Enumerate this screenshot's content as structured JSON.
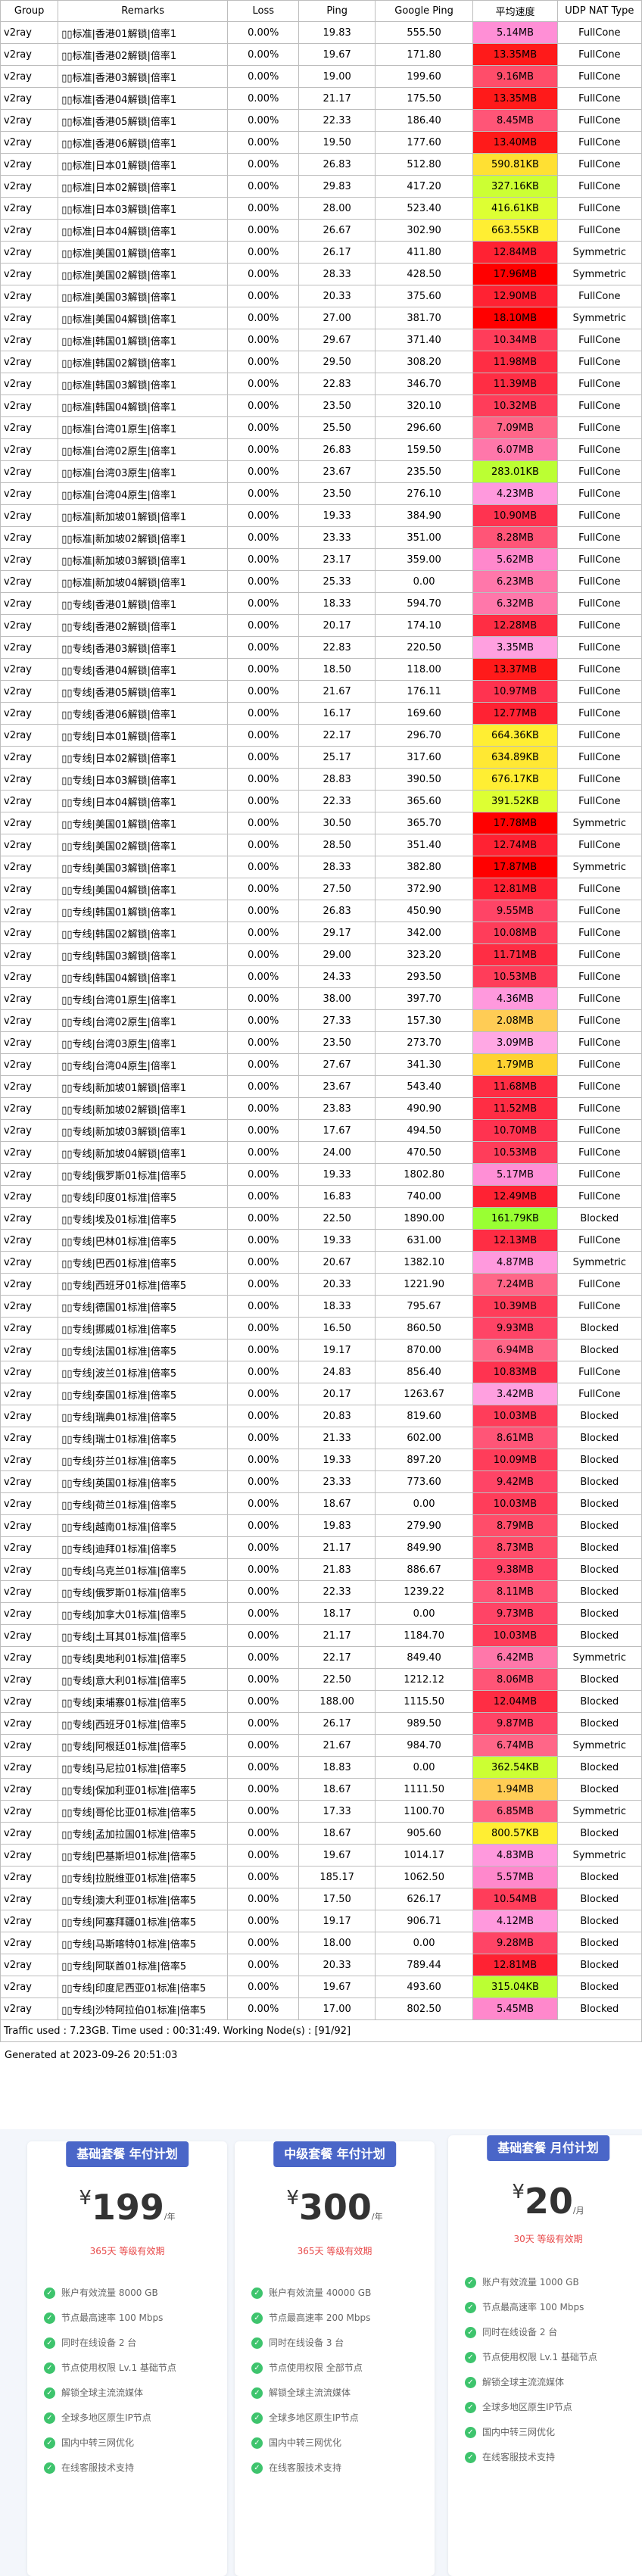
{
  "table": {
    "headers": [
      "Group",
      "Remarks",
      "Loss",
      "Ping",
      "Google Ping",
      "平均速度",
      "UDP NAT Type"
    ],
    "rows": [
      [
        "v2ray",
        "▯▯标准|香港01解锁|倍率1",
        "0.00%",
        "19.83",
        "555.50",
        "5.14MB",
        "FullCone",
        "#ff8fd6"
      ],
      [
        "v2ray",
        "▯▯标准|香港02解锁|倍率1",
        "0.00%",
        "19.67",
        "171.80",
        "13.35MB",
        "FullCone",
        "#ff1a1a"
      ],
      [
        "v2ray",
        "▯▯标准|香港03解锁|倍率1",
        "0.00%",
        "19.00",
        "199.60",
        "9.16MB",
        "FullCone",
        "#ff4d6a"
      ],
      [
        "v2ray",
        "▯▯标准|香港04解锁|倍率1",
        "0.00%",
        "21.17",
        "175.50",
        "13.35MB",
        "FullCone",
        "#ff1a1a"
      ],
      [
        "v2ray",
        "▯▯标准|香港05解锁|倍率1",
        "0.00%",
        "22.33",
        "186.40",
        "8.45MB",
        "FullCone",
        "#ff5577"
      ],
      [
        "v2ray",
        "▯▯标准|香港06解锁|倍率1",
        "0.00%",
        "19.50",
        "177.60",
        "13.40MB",
        "FullCone",
        "#ff1a1a"
      ],
      [
        "v2ray",
        "▯▯标准|日本01解锁|倍率1",
        "0.00%",
        "26.83",
        "512.80",
        "590.81KB",
        "FullCone",
        "#ffe033"
      ],
      [
        "v2ray",
        "▯▯标准|日本02解锁|倍率1",
        "0.00%",
        "29.83",
        "417.20",
        "327.16KB",
        "FullCone",
        "#ccff33"
      ],
      [
        "v2ray",
        "▯▯标准|日本03解锁|倍率1",
        "0.00%",
        "28.00",
        "523.40",
        "416.61KB",
        "FullCone",
        "#ddff33"
      ],
      [
        "v2ray",
        "▯▯标准|日本04解锁|倍率1",
        "0.00%",
        "26.67",
        "302.90",
        "663.55KB",
        "FullCone",
        "#ffee33"
      ],
      [
        "v2ray",
        "▯▯标准|美国01解锁|倍率1",
        "0.00%",
        "26.17",
        "411.80",
        "12.84MB",
        "Symmetric",
        "#ff2233"
      ],
      [
        "v2ray",
        "▯▯标准|美国02解锁|倍率1",
        "0.00%",
        "28.33",
        "428.50",
        "17.96MB",
        "Symmetric",
        "#ff0000"
      ],
      [
        "v2ray",
        "▯▯标准|美国03解锁|倍率1",
        "0.00%",
        "20.33",
        "375.60",
        "12.90MB",
        "FullCone",
        "#ff2233"
      ],
      [
        "v2ray",
        "▯▯标准|美国04解锁|倍率1",
        "0.00%",
        "27.00",
        "381.70",
        "18.10MB",
        "Symmetric",
        "#ff0000"
      ],
      [
        "v2ray",
        "▯▯标准|韩国01解锁|倍率1",
        "0.00%",
        "29.67",
        "371.40",
        "10.34MB",
        "FullCone",
        "#ff3d5a"
      ],
      [
        "v2ray",
        "▯▯标准|韩国02解锁|倍率1",
        "0.00%",
        "29.50",
        "308.20",
        "11.98MB",
        "FullCone",
        "#ff2d44"
      ],
      [
        "v2ray",
        "▯▯标准|韩国03解锁|倍率1",
        "0.00%",
        "22.83",
        "346.70",
        "11.39MB",
        "FullCone",
        "#ff2d44"
      ],
      [
        "v2ray",
        "▯▯标准|韩国04解锁|倍率1",
        "0.00%",
        "23.50",
        "320.10",
        "10.32MB",
        "FullCone",
        "#ff3d5a"
      ],
      [
        "v2ray",
        "▯▯标准|台湾01原生|倍率1",
        "0.00%",
        "25.50",
        "296.60",
        "7.09MB",
        "FullCone",
        "#ff6688"
      ],
      [
        "v2ray",
        "▯▯标准|台湾02原生|倍率1",
        "0.00%",
        "26.83",
        "159.50",
        "6.07MB",
        "FullCone",
        "#ff77aa"
      ],
      [
        "v2ray",
        "▯▯标准|台湾03原生|倍率1",
        "0.00%",
        "23.67",
        "235.50",
        "283.01KB",
        "FullCone",
        "#bbff33"
      ],
      [
        "v2ray",
        "▯▯标准|台湾04原生|倍率1",
        "0.00%",
        "23.50",
        "276.10",
        "4.23MB",
        "FullCone",
        "#ff99dd"
      ],
      [
        "v2ray",
        "▯▯标准|新加坡01解锁|倍率1",
        "0.00%",
        "19.33",
        "384.90",
        "10.90MB",
        "FullCone",
        "#ff3350"
      ],
      [
        "v2ray",
        "▯▯标准|新加坡02解锁|倍率1",
        "0.00%",
        "23.33",
        "351.00",
        "8.28MB",
        "FullCone",
        "#ff5577"
      ],
      [
        "v2ray",
        "▯▯标准|新加坡03解锁|倍率1",
        "0.00%",
        "23.17",
        "359.00",
        "5.62MB",
        "FullCone",
        "#ff88cc"
      ],
      [
        "v2ray",
        "▯▯标准|新加坡04解锁|倍率1",
        "0.00%",
        "25.33",
        "0.00",
        "6.23MB",
        "FullCone",
        "#ff77aa"
      ],
      [
        "v2ray",
        "▯▯专线|香港01解锁|倍率1",
        "0.00%",
        "18.33",
        "594.70",
        "6.32MB",
        "FullCone",
        "#ff77aa"
      ],
      [
        "v2ray",
        "▯▯专线|香港02解锁|倍率1",
        "0.00%",
        "20.17",
        "174.10",
        "12.28MB",
        "FullCone",
        "#ff2d44"
      ],
      [
        "v2ray",
        "▯▯专线|香港03解锁|倍率1",
        "0.00%",
        "22.83",
        "220.50",
        "3.35MB",
        "FullCone",
        "#ffa0e0"
      ],
      [
        "v2ray",
        "▯▯专线|香港04解锁|倍率1",
        "0.00%",
        "18.50",
        "118.00",
        "13.37MB",
        "FullCone",
        "#ff1a1a"
      ],
      [
        "v2ray",
        "▯▯专线|香港05解锁|倍率1",
        "0.00%",
        "21.67",
        "176.11",
        "10.97MB",
        "FullCone",
        "#ff3350"
      ],
      [
        "v2ray",
        "▯▯专线|香港06解锁|倍率1",
        "0.00%",
        "16.17",
        "169.60",
        "12.77MB",
        "FullCone",
        "#ff2233"
      ],
      [
        "v2ray",
        "▯▯专线|日本01解锁|倍率1",
        "0.00%",
        "22.17",
        "296.70",
        "664.36KB",
        "FullCone",
        "#ffee33"
      ],
      [
        "v2ray",
        "▯▯专线|日本02解锁|倍率1",
        "0.00%",
        "25.17",
        "317.60",
        "634.89KB",
        "FullCone",
        "#ffe833"
      ],
      [
        "v2ray",
        "▯▯专线|日本03解锁|倍率1",
        "0.00%",
        "28.83",
        "390.50",
        "676.17KB",
        "FullCone",
        "#ffee33"
      ],
      [
        "v2ray",
        "▯▯专线|日本04解锁|倍率1",
        "0.00%",
        "22.33",
        "365.60",
        "391.52KB",
        "FullCone",
        "#ddff33"
      ],
      [
        "v2ray",
        "▯▯专线|美国01解锁|倍率1",
        "0.00%",
        "30.50",
        "365.70",
        "17.78MB",
        "Symmetric",
        "#ff0000"
      ],
      [
        "v2ray",
        "▯▯专线|美国02解锁|倍率1",
        "0.00%",
        "28.50",
        "351.40",
        "12.74MB",
        "FullCone",
        "#ff2233"
      ],
      [
        "v2ray",
        "▯▯专线|美国03解锁|倍率1",
        "0.00%",
        "28.33",
        "382.80",
        "17.87MB",
        "Symmetric",
        "#ff0000"
      ],
      [
        "v2ray",
        "▯▯专线|美国04解锁|倍率1",
        "0.00%",
        "27.50",
        "372.90",
        "12.81MB",
        "FullCone",
        "#ff2233"
      ],
      [
        "v2ray",
        "▯▯专线|韩国01解锁|倍率1",
        "0.00%",
        "26.83",
        "450.90",
        "9.55MB",
        "FullCone",
        "#ff4466"
      ],
      [
        "v2ray",
        "▯▯专线|韩国02解锁|倍率1",
        "0.00%",
        "29.17",
        "342.00",
        "10.08MB",
        "FullCone",
        "#ff3d5a"
      ],
      [
        "v2ray",
        "▯▯专线|韩国03解锁|倍率1",
        "0.00%",
        "29.00",
        "323.20",
        "11.71MB",
        "FullCone",
        "#ff2d44"
      ],
      [
        "v2ray",
        "▯▯专线|韩国04解锁|倍率1",
        "0.00%",
        "24.33",
        "293.50",
        "10.53MB",
        "FullCone",
        "#ff3d5a"
      ],
      [
        "v2ray",
        "▯▯专线|台湾01原生|倍率1",
        "0.00%",
        "38.00",
        "397.70",
        "4.36MB",
        "FullCone",
        "#ff99dd"
      ],
      [
        "v2ray",
        "▯▯专线|台湾02原生|倍率1",
        "0.00%",
        "27.33",
        "157.30",
        "2.08MB",
        "FullCone",
        "#ffcc55"
      ],
      [
        "v2ray",
        "▯▯专线|台湾03原生|倍率1",
        "0.00%",
        "23.50",
        "273.70",
        "3.09MB",
        "FullCone",
        "#ffa8e4"
      ],
      [
        "v2ray",
        "▯▯专线|台湾04原生|倍率1",
        "0.00%",
        "27.67",
        "341.30",
        "1.79MB",
        "FullCone",
        "#ffd233"
      ],
      [
        "v2ray",
        "▯▯专线|新加坡01解锁|倍率1",
        "0.00%",
        "23.67",
        "543.40",
        "11.68MB",
        "FullCone",
        "#ff2d44"
      ],
      [
        "v2ray",
        "▯▯专线|新加坡02解锁|倍率1",
        "0.00%",
        "23.83",
        "490.90",
        "11.52MB",
        "FullCone",
        "#ff2d44"
      ],
      [
        "v2ray",
        "▯▯专线|新加坡03解锁|倍率1",
        "0.00%",
        "17.67",
        "494.50",
        "10.70MB",
        "FullCone",
        "#ff3350"
      ],
      [
        "v2ray",
        "▯▯专线|新加坡04解锁|倍率1",
        "0.00%",
        "24.00",
        "470.50",
        "10.53MB",
        "FullCone",
        "#ff3d5a"
      ],
      [
        "v2ray",
        "▯▯专线|俄罗斯01标准|倍率5",
        "0.00%",
        "19.33",
        "1802.80",
        "5.17MB",
        "FullCone",
        "#ff8fd6"
      ],
      [
        "v2ray",
        "▯▯专线|印度01标准|倍率5",
        "0.00%",
        "16.83",
        "740.00",
        "12.49MB",
        "FullCone",
        "#ff2233"
      ],
      [
        "v2ray",
        "▯▯专线|埃及01标准|倍率5",
        "0.00%",
        "22.50",
        "1890.00",
        "161.79KB",
        "Blocked",
        "#99ff33"
      ],
      [
        "v2ray",
        "▯▯专线|巴林01标准|倍率5",
        "0.00%",
        "19.33",
        "631.00",
        "12.13MB",
        "FullCone",
        "#ff2d44"
      ],
      [
        "v2ray",
        "▯▯专线|巴西01标准|倍率5",
        "0.00%",
        "20.67",
        "1382.10",
        "4.87MB",
        "Symmetric",
        "#ff99dd"
      ],
      [
        "v2ray",
        "▯▯专线|西班牙01标准|倍率5",
        "0.00%",
        "20.33",
        "1221.90",
        "7.24MB",
        "FullCone",
        "#ff6688"
      ],
      [
        "v2ray",
        "▯▯专线|德国01标准|倍率5",
        "0.00%",
        "18.33",
        "795.67",
        "10.39MB",
        "FullCone",
        "#ff3d5a"
      ],
      [
        "v2ray",
        "▯▯专线|挪威01标准|倍率5",
        "0.00%",
        "16.50",
        "860.50",
        "9.93MB",
        "Blocked",
        "#ff4466"
      ],
      [
        "v2ray",
        "▯▯专线|法国01标准|倍率5",
        "0.00%",
        "19.17",
        "870.00",
        "6.94MB",
        "Blocked",
        "#ff6688"
      ],
      [
        "v2ray",
        "▯▯专线|波兰01标准|倍率5",
        "0.00%",
        "24.83",
        "856.40",
        "10.83MB",
        "FullCone",
        "#ff3350"
      ],
      [
        "v2ray",
        "▯▯专线|泰国01标准|倍率5",
        "0.00%",
        "20.17",
        "1263.67",
        "3.42MB",
        "FullCone",
        "#ffa0e0"
      ],
      [
        "v2ray",
        "▯▯专线|瑞典01标准|倍率5",
        "0.00%",
        "20.83",
        "819.60",
        "10.03MB",
        "Blocked",
        "#ff3d5a"
      ],
      [
        "v2ray",
        "▯▯专线|瑞士01标准|倍率5",
        "0.00%",
        "21.33",
        "602.00",
        "8.61MB",
        "Blocked",
        "#ff5577"
      ],
      [
        "v2ray",
        "▯▯专线|芬兰01标准|倍率5",
        "0.00%",
        "19.33",
        "897.20",
        "10.09MB",
        "Blocked",
        "#ff3d5a"
      ],
      [
        "v2ray",
        "▯▯专线|英国01标准|倍率5",
        "0.00%",
        "23.33",
        "773.60",
        "9.42MB",
        "Blocked",
        "#ff4466"
      ],
      [
        "v2ray",
        "▯▯专线|荷兰01标准|倍率5",
        "0.00%",
        "18.67",
        "0.00",
        "10.03MB",
        "Blocked",
        "#ff3d5a"
      ],
      [
        "v2ray",
        "▯▯专线|越南01标准|倍率5",
        "0.00%",
        "19.83",
        "279.90",
        "8.79MB",
        "Blocked",
        "#ff4d6a"
      ],
      [
        "v2ray",
        "▯▯专线|迪拜01标准|倍率5",
        "0.00%",
        "21.17",
        "849.90",
        "8.73MB",
        "Blocked",
        "#ff4d6a"
      ],
      [
        "v2ray",
        "▯▯专线|乌克兰01标准|倍率5",
        "0.00%",
        "21.83",
        "886.67",
        "9.38MB",
        "Blocked",
        "#ff4466"
      ],
      [
        "v2ray",
        "▯▯专线|俄罗斯01标准|倍率5",
        "0.00%",
        "22.33",
        "1239.22",
        "8.11MB",
        "Blocked",
        "#ff5577"
      ],
      [
        "v2ray",
        "▯▯专线|加拿大01标准|倍率5",
        "0.00%",
        "18.17",
        "0.00",
        "9.73MB",
        "Blocked",
        "#ff4466"
      ],
      [
        "v2ray",
        "▯▯专线|土耳其01标准|倍率5",
        "0.00%",
        "21.17",
        "1184.70",
        "10.03MB",
        "Blocked",
        "#ff3d5a"
      ],
      [
        "v2ray",
        "▯▯专线|奥地利01标准|倍率5",
        "0.00%",
        "22.17",
        "849.40",
        "6.42MB",
        "Symmetric",
        "#ff77aa"
      ],
      [
        "v2ray",
        "▯▯专线|意大利01标准|倍率5",
        "0.00%",
        "22.50",
        "1212.12",
        "8.06MB",
        "Blocked",
        "#ff5577"
      ],
      [
        "v2ray",
        "▯▯专线|柬埔寨01标准|倍率5",
        "0.00%",
        "188.00",
        "1115.50",
        "12.04MB",
        "Blocked",
        "#ff2d44"
      ],
      [
        "v2ray",
        "▯▯专线|西班牙01标准|倍率5",
        "0.00%",
        "26.17",
        "989.50",
        "9.87MB",
        "Blocked",
        "#ff4466"
      ],
      [
        "v2ray",
        "▯▯专线|阿根廷01标准|倍率5",
        "0.00%",
        "21.67",
        "984.70",
        "6.74MB",
        "Symmetric",
        "#ff6688"
      ],
      [
        "v2ray",
        "▯▯专线|马尼拉01标准|倍率5",
        "0.00%",
        "18.83",
        "0.00",
        "362.54KB",
        "Blocked",
        "#ccff33"
      ],
      [
        "v2ray",
        "▯▯专线|保加利亚01标准|倍率5",
        "0.00%",
        "18.67",
        "1111.50",
        "1.94MB",
        "Blocked",
        "#ffcc55"
      ],
      [
        "v2ray",
        "▯▯专线|哥伦比亚01标准|倍率5",
        "0.00%",
        "17.33",
        "1100.70",
        "6.85MB",
        "Symmetric",
        "#ff6688"
      ],
      [
        "v2ray",
        "▯▯专线|孟加拉国01标准|倍率5",
        "0.00%",
        "18.67",
        "905.60",
        "800.57KB",
        "Blocked",
        "#ffee33"
      ],
      [
        "v2ray",
        "▯▯专线|巴基斯坦01标准|倍率5",
        "0.00%",
        "19.67",
        "1014.17",
        "4.83MB",
        "Symmetric",
        "#ff99dd"
      ],
      [
        "v2ray",
        "▯▯专线|拉脱维亚01标准|倍率5",
        "0.00%",
        "185.17",
        "1062.50",
        "5.57MB",
        "Blocked",
        "#ff88cc"
      ],
      [
        "v2ray",
        "▯▯专线|澳大利亚01标准|倍率5",
        "0.00%",
        "17.50",
        "626.17",
        "10.54MB",
        "Blocked",
        "#ff3d5a"
      ],
      [
        "v2ray",
        "▯▯专线|阿塞拜疆01标准|倍率5",
        "0.00%",
        "19.17",
        "906.71",
        "4.12MB",
        "Blocked",
        "#ff99dd"
      ],
      [
        "v2ray",
        "▯▯专线|马斯喀特01标准|倍率5",
        "0.00%",
        "18.00",
        "0.00",
        "9.28MB",
        "Blocked",
        "#ff4466"
      ],
      [
        "v2ray",
        "▯▯专线|阿联酋01标准|倍率5",
        "0.00%",
        "20.33",
        "789.44",
        "12.81MB",
        "Blocked",
        "#ff2233"
      ],
      [
        "v2ray",
        "▯▯专线|印度尼西亚01标准|倍率5",
        "0.00%",
        "19.67",
        "493.60",
        "315.04KB",
        "Blocked",
        "#bbff33"
      ],
      [
        "v2ray",
        "▯▯专线|沙特阿拉伯01标准|倍率5",
        "0.00%",
        "17.00",
        "802.50",
        "5.45MB",
        "Blocked",
        "#ff88cc"
      ]
    ]
  },
  "footer": {
    "traffic": "Traffic used : 7.23GB. Time used : 00:31:49. Working Node(s) : [91/92]",
    "generated": "Generated at 2023-09-26 20:51:03"
  },
  "plans": [
    {
      "title": "基础套餐 年付计划",
      "currency": "¥",
      "price": "199",
      "per": "/年",
      "note": "365天 等级有效期",
      "features": [
        "账户有效流量 8000 GB",
        "节点最高速率 100 Mbps",
        "同时在线设备 2 台",
        "节点使用权限 Lv.1 基础节点",
        "解锁全球主流流媒体",
        "全球多地区原生IP节点",
        "国内中转三网优化",
        "在线客服技术支持"
      ]
    },
    {
      "title": "中级套餐 年付计划",
      "currency": "¥",
      "price": "300",
      "per": "/年",
      "note": "365天 等级有效期",
      "features": [
        "账户有效流量 40000 GB",
        "节点最高速率 200 Mbps",
        "同时在线设备 3 台",
        "节点使用权限 全部节点",
        "解锁全球主流流媒体",
        "全球多地区原生IP节点",
        "国内中转三网优化",
        "在线客服技术支持"
      ]
    },
    {
      "title": "基础套餐 月付计划",
      "currency": "¥",
      "price": "20",
      "per": "/月",
      "note": "30天 等级有效期",
      "features": [
        "账户有效流量 1000 GB",
        "节点最高速率 100 Mbps",
        "同时在线设备 2 台",
        "节点使用权限 Lv.1 基础节点",
        "解锁全球主流流媒体",
        "全球多地区原生IP节点",
        "国内中转三网优化",
        "在线客服技术支持"
      ]
    }
  ]
}
